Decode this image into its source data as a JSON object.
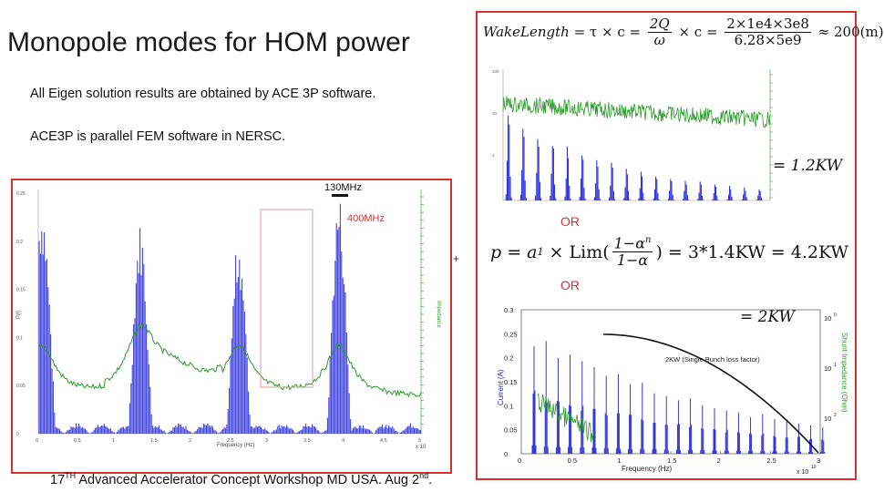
{
  "slide": {
    "title": "Monopole modes for HOM power",
    "bullets": [
      "All Eigen solution results are obtained by ACE 3P software.",
      "ACE3P is parallel FEM software in NERSC."
    ],
    "footer": {
      "prefix": "17",
      "sup1": "TH",
      "middle": " Advanced Accelerator Concept Workshop MD USA. Aug 2",
      "sup2": "nd",
      "suffix": "."
    }
  },
  "equations": {
    "wake": {
      "lhs": "WakeLength",
      "eq1": " = τ × c = ",
      "frac1_num": "2Q",
      "frac1_den": "ω",
      "eq2": " × c = ",
      "frac2_num": "2×1e4×3e8",
      "frac2_den": "6.28×5e9",
      "eq3": " ≈ 200(m)"
    },
    "result_1_2": "= 1.2KW",
    "power": {
      "lhs": "p = a",
      "sub": "1",
      "mid": " × Lim(",
      "frac_num": "1−α",
      "frac_num_sup": "n",
      "frac_den": "1−α",
      "rhs": ") = 3*1.4KW = 4.2KW"
    },
    "result_2": "= 2KW",
    "or_1": "OR",
    "or_2": "OR",
    "plus": "+"
  },
  "left_chart": {
    "label_130": "130MHz",
    "label_400": "400MHz",
    "x_label": "Frequency (Hz)",
    "y_left_label": "P(f)",
    "y_right_label": "Impedance",
    "x_exponent": "x 10",
    "x_ticks": [
      "0",
      "0.5",
      "1",
      "1.5",
      "2",
      "2.5",
      "3",
      "3.5",
      "4",
      "4.5",
      "5"
    ],
    "y_left_ticks": [
      "0.25",
      "0.2",
      "0.15",
      "0.1",
      "0.05",
      "0"
    ]
  },
  "right_top_chart": {
    "y_ticks_left": [
      "100",
      "10",
      "1"
    ]
  },
  "right_bottom_chart": {
    "x_label": "Frequency (Hz)",
    "x_exponent": "x 10",
    "x_exponent_sup": "10",
    "x_ticks": [
      "0",
      "0.5",
      "1",
      "1.5",
      "2",
      "2.5",
      "3"
    ],
    "y_left_label": "Current (A)",
    "y_left_ticks": [
      "0.3",
      "0.25",
      "0.2",
      "0.15",
      "0.1",
      "0.05",
      "0"
    ],
    "y_right_label": "Shunt Impedance (Ohm)",
    "y_right_ticks": [
      "10",
      "10",
      "10"
    ],
    "y_right_sups": [
      "0",
      "1",
      "2"
    ],
    "annotation": "2KW (Single Bunch loss factor)"
  },
  "colors": {
    "frame": "#d9302c",
    "spectrum": "#1e22d8",
    "impedance": "#2a9a2a",
    "curve": "#111111"
  }
}
